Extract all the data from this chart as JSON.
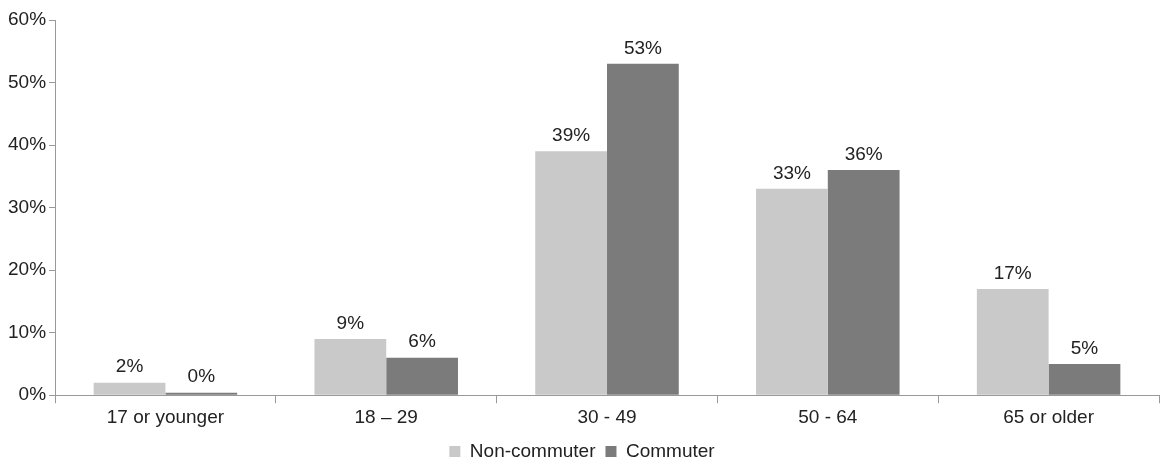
{
  "chart_data": {
    "type": "bar",
    "categories": [
      "17 or younger",
      "18 – 29",
      "30 - 49",
      "50 - 64",
      "65 or older"
    ],
    "series": [
      {
        "name": "Non-commuter",
        "color": "#c9c9c9",
        "values": [
          2,
          9,
          39,
          33,
          17
        ],
        "value_labels": [
          "2%",
          "9%",
          "39%",
          "33%",
          "17%"
        ]
      },
      {
        "name": "Commuter",
        "color": "#7b7b7b",
        "values": [
          0.4,
          6,
          53,
          36,
          5
        ],
        "value_labels": [
          "0%",
          "6%",
          "53%",
          "36%",
          "5%"
        ]
      }
    ],
    "ylim": [
      0,
      60
    ],
    "yticks": [
      {
        "value": 0,
        "label": "0%"
      },
      {
        "value": 10,
        "label": "10%"
      },
      {
        "value": 20,
        "label": "20%"
      },
      {
        "value": 30,
        "label": "30%"
      },
      {
        "value": 40,
        "label": "40%"
      },
      {
        "value": 50,
        "label": "50%"
      },
      {
        "value": 60,
        "label": "60%"
      }
    ],
    "grid": false,
    "legend": "bottom"
  }
}
